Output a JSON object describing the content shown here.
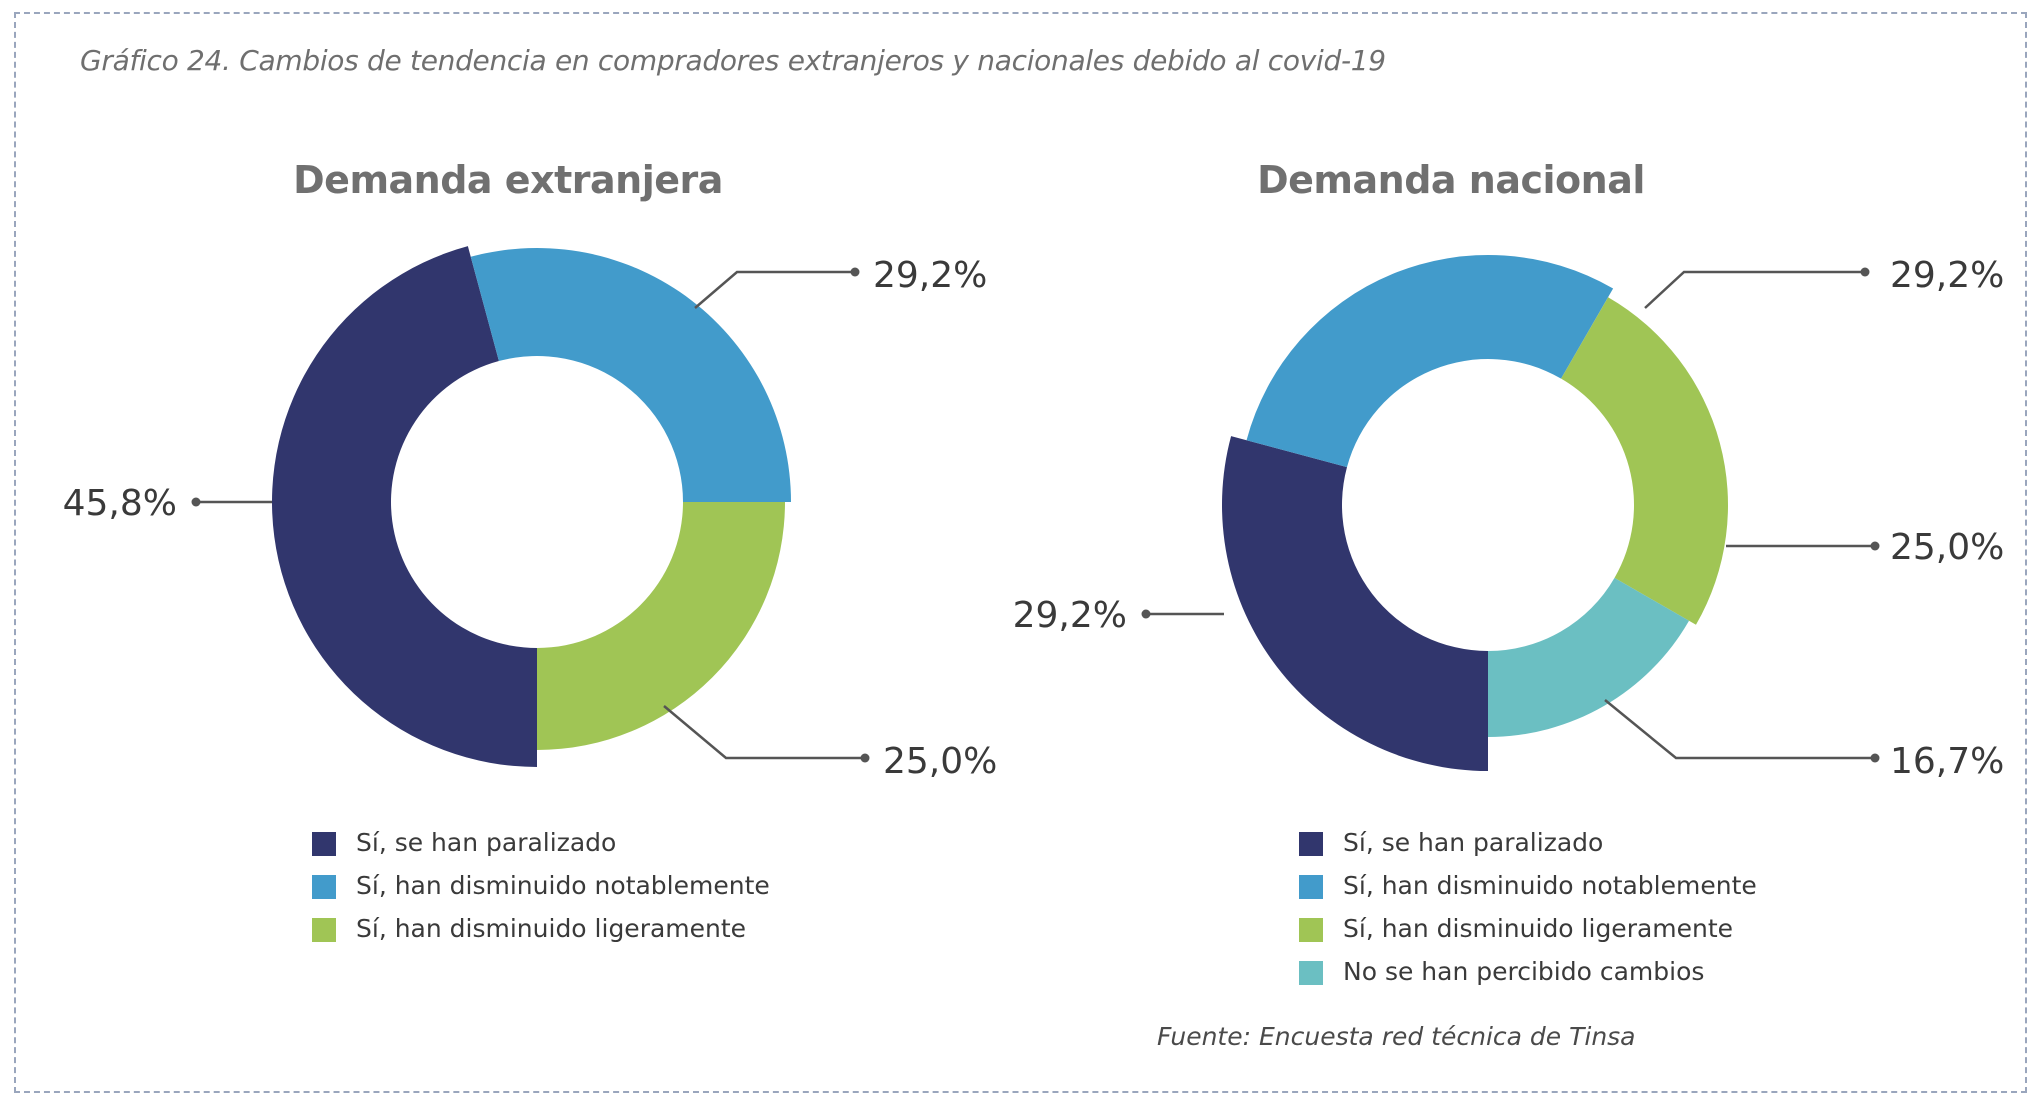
{
  "caption": "Gráfico 24. Cambios de tendencia en compradores extranjeros y nacionales debido al covid-19",
  "source": "Fuente: Encuesta red técnica de Tinsa",
  "colors": {
    "paralizado": "#31366d",
    "notable": "#429bcb",
    "ligera": "#a0c555",
    "sin_cambios": "#6bbfc2"
  },
  "chart_data": [
    {
      "type": "pie",
      "title": "Demanda extranjera",
      "labels": [
        "Sí, se han paralizado",
        "Sí, han disminuido notablemente",
        "Sí, han disminuido ligeramente"
      ],
      "values": [
        45.8,
        29.2,
        25.0
      ],
      "value_labels": [
        "45,8%",
        "29,2%",
        "25,0%"
      ],
      "colors": [
        "#31366d",
        "#429bcb",
        "#a0c555"
      ]
    },
    {
      "type": "pie",
      "title": "Demanda nacional",
      "labels": [
        "Sí, se han paralizado",
        "Sí, han disminuido notablemente",
        "Sí, han disminuido ligeramente",
        "No se han percibido cambios"
      ],
      "values": [
        29.2,
        29.2,
        25.0,
        16.7
      ],
      "value_labels": [
        "29,2%",
        "29,2%",
        "25,0%",
        "16,7%"
      ],
      "colors": [
        "#31366d",
        "#429bcb",
        "#a0c555",
        "#6bbfc2"
      ]
    }
  ]
}
